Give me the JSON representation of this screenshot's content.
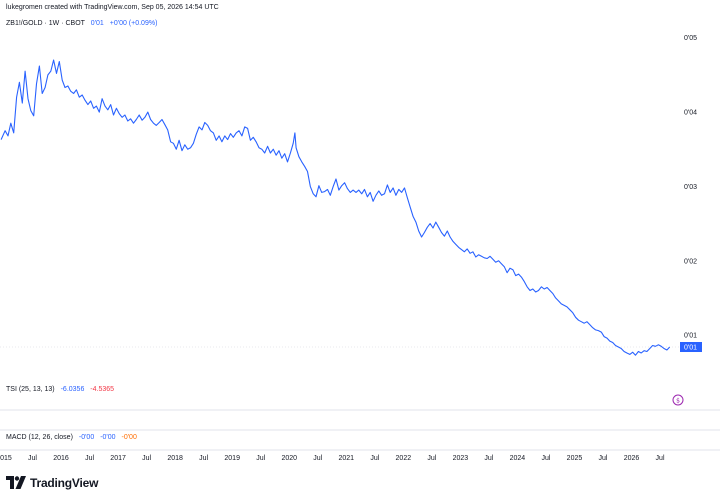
{
  "caption": "lukegromen created with TradingView.com, Sep 05, 2026 14:54 UTC",
  "legend": {
    "symbol": "ZB1!/GOLD · 1W · CBOT",
    "value": "0'01",
    "change": "+0'00 (+0.09%)"
  },
  "indicators": {
    "tsi": {
      "label": "TSI (25, 13, 13)",
      "v1": "-6.0356",
      "v2": "-4.5365"
    },
    "macd": {
      "label": "MACD (12, 26, close)",
      "v1": "-0'00",
      "v2": "-0'00",
      "v3": "-0'00"
    }
  },
  "branding": {
    "logo_text": "TradingView"
  },
  "colors": {
    "line": "#2962ff",
    "label_bg": "#2962ff",
    "tsi_value2": "#f23645",
    "macd_value3": "#ff6d00",
    "event_marker": "#9c27b0"
  },
  "chart_data": {
    "type": "line",
    "title": "ZB1!/GOLD · 1W · CBOT",
    "y_tick_labels": [
      "0'05",
      "0'04",
      "0'03",
      "0'02",
      "0'01"
    ],
    "y_ticks": [
      0.05,
      0.04,
      0.03,
      0.02,
      0.01
    ],
    "ylim": [
      0.0045,
      0.0505
    ],
    "xlim": [
      2015.0,
      2026.85
    ],
    "x_ticks": [
      {
        "x": 2015.0,
        "label": "2015"
      },
      {
        "x": 2015.5,
        "label": "Jul"
      },
      {
        "x": 2016.0,
        "label": "2016"
      },
      {
        "x": 2016.5,
        "label": "Jul"
      },
      {
        "x": 2017.0,
        "label": "2017"
      },
      {
        "x": 2017.5,
        "label": "Jul"
      },
      {
        "x": 2018.0,
        "label": "2018"
      },
      {
        "x": 2018.5,
        "label": "Jul"
      },
      {
        "x": 2019.0,
        "label": "2019"
      },
      {
        "x": 2019.5,
        "label": "Jul"
      },
      {
        "x": 2020.0,
        "label": "2020"
      },
      {
        "x": 2020.5,
        "label": "Jul"
      },
      {
        "x": 2021.0,
        "label": "2021"
      },
      {
        "x": 2021.5,
        "label": "Jul"
      },
      {
        "x": 2022.0,
        "label": "2022"
      },
      {
        "x": 2022.5,
        "label": "Jul"
      },
      {
        "x": 2023.0,
        "label": "2023"
      },
      {
        "x": 2023.5,
        "label": "Jul"
      },
      {
        "x": 2024.0,
        "label": "2024"
      },
      {
        "x": 2024.5,
        "label": "Jul"
      },
      {
        "x": 2025.0,
        "label": "2025"
      },
      {
        "x": 2025.5,
        "label": "Jul"
      },
      {
        "x": 2026.0,
        "label": "2026"
      },
      {
        "x": 2026.5,
        "label": "Jul"
      }
    ],
    "last_value_label": "0'01",
    "last_value": 0.0084,
    "series": [
      {
        "points": [
          [
            2014.95,
            0.0363
          ],
          [
            2015.02,
            0.0375
          ],
          [
            2015.07,
            0.0368
          ],
          [
            2015.12,
            0.0385
          ],
          [
            2015.17,
            0.0372
          ],
          [
            2015.22,
            0.042
          ],
          [
            2015.27,
            0.044
          ],
          [
            2015.32,
            0.0412
          ],
          [
            2015.37,
            0.0455
          ],
          [
            2015.42,
            0.0418
          ],
          [
            2015.47,
            0.0402
          ],
          [
            2015.52,
            0.0395
          ],
          [
            2015.57,
            0.0438
          ],
          [
            2015.62,
            0.0462
          ],
          [
            2015.67,
            0.0425
          ],
          [
            2015.72,
            0.0433
          ],
          [
            2015.77,
            0.045
          ],
          [
            2015.82,
            0.0455
          ],
          [
            2015.87,
            0.047
          ],
          [
            2015.92,
            0.0452
          ],
          [
            2015.97,
            0.0468
          ],
          [
            2016.02,
            0.0443
          ],
          [
            2016.07,
            0.0433
          ],
          [
            2016.12,
            0.0435
          ],
          [
            2016.17,
            0.0428
          ],
          [
            2016.22,
            0.0425
          ],
          [
            2016.27,
            0.043
          ],
          [
            2016.32,
            0.042
          ],
          [
            2016.37,
            0.0423
          ],
          [
            2016.42,
            0.0416
          ],
          [
            2016.47,
            0.041
          ],
          [
            2016.52,
            0.0415
          ],
          [
            2016.57,
            0.0405
          ],
          [
            2016.62,
            0.0408
          ],
          [
            2016.67,
            0.04
          ],
          [
            2016.72,
            0.0418
          ],
          [
            2016.77,
            0.0408
          ],
          [
            2016.82,
            0.0403
          ],
          [
            2016.87,
            0.041
          ],
          [
            2016.92,
            0.0396
          ],
          [
            2016.97,
            0.0405
          ],
          [
            2017.02,
            0.0398
          ],
          [
            2017.07,
            0.0393
          ],
          [
            2017.12,
            0.0396
          ],
          [
            2017.17,
            0.0388
          ],
          [
            2017.22,
            0.0391
          ],
          [
            2017.27,
            0.0385
          ],
          [
            2017.32,
            0.039
          ],
          [
            2017.37,
            0.0396
          ],
          [
            2017.42,
            0.0389
          ],
          [
            2017.47,
            0.0393
          ],
          [
            2017.52,
            0.04
          ],
          [
            2017.57,
            0.039
          ],
          [
            2017.62,
            0.0385
          ],
          [
            2017.67,
            0.0382
          ],
          [
            2017.72,
            0.0386
          ],
          [
            2017.77,
            0.039
          ],
          [
            2017.82,
            0.0383
          ],
          [
            2017.87,
            0.0376
          ],
          [
            2017.92,
            0.036
          ],
          [
            2017.97,
            0.0358
          ],
          [
            2018.02,
            0.035
          ],
          [
            2018.07,
            0.0362
          ],
          [
            2018.12,
            0.0348
          ],
          [
            2018.17,
            0.0356
          ],
          [
            2018.22,
            0.035
          ],
          [
            2018.27,
            0.0352
          ],
          [
            2018.32,
            0.0358
          ],
          [
            2018.37,
            0.037
          ],
          [
            2018.42,
            0.038
          ],
          [
            2018.47,
            0.0376
          ],
          [
            2018.52,
            0.0386
          ],
          [
            2018.57,
            0.0382
          ],
          [
            2018.62,
            0.0375
          ],
          [
            2018.67,
            0.0372
          ],
          [
            2018.72,
            0.0362
          ],
          [
            2018.77,
            0.0368
          ],
          [
            2018.82,
            0.036
          ],
          [
            2018.87,
            0.0368
          ],
          [
            2018.92,
            0.0363
          ],
          [
            2018.97,
            0.0371
          ],
          [
            2019.02,
            0.0366
          ],
          [
            2019.07,
            0.0372
          ],
          [
            2019.12,
            0.0375
          ],
          [
            2019.17,
            0.0368
          ],
          [
            2019.22,
            0.038
          ],
          [
            2019.27,
            0.0378
          ],
          [
            2019.32,
            0.0362
          ],
          [
            2019.37,
            0.0366
          ],
          [
            2019.42,
            0.036
          ],
          [
            2019.47,
            0.0352
          ],
          [
            2019.52,
            0.035
          ],
          [
            2019.57,
            0.0345
          ],
          [
            2019.62,
            0.0354
          ],
          [
            2019.67,
            0.0345
          ],
          [
            2019.72,
            0.035
          ],
          [
            2019.77,
            0.0342
          ],
          [
            2019.82,
            0.0348
          ],
          [
            2019.87,
            0.0338
          ],
          [
            2019.92,
            0.0344
          ],
          [
            2019.97,
            0.0333
          ],
          [
            2020.02,
            0.0345
          ],
          [
            2020.07,
            0.0358
          ],
          [
            2020.1,
            0.0372
          ],
          [
            2020.12,
            0.0352
          ],
          [
            2020.17,
            0.034
          ],
          [
            2020.22,
            0.0333
          ],
          [
            2020.27,
            0.0327
          ],
          [
            2020.32,
            0.032
          ],
          [
            2020.37,
            0.03
          ],
          [
            2020.42,
            0.029
          ],
          [
            2020.47,
            0.0286
          ],
          [
            2020.52,
            0.0301
          ],
          [
            2020.57,
            0.0292
          ],
          [
            2020.62,
            0.0293
          ],
          [
            2020.67,
            0.0296
          ],
          [
            2020.72,
            0.0288
          ],
          [
            2020.77,
            0.03
          ],
          [
            2020.82,
            0.031
          ],
          [
            2020.87,
            0.0295
          ],
          [
            2020.92,
            0.0301
          ],
          [
            2020.97,
            0.0305
          ],
          [
            2021.02,
            0.0297
          ],
          [
            2021.07,
            0.0292
          ],
          [
            2021.12,
            0.0295
          ],
          [
            2021.17,
            0.0292
          ],
          [
            2021.22,
            0.0295
          ],
          [
            2021.27,
            0.029
          ],
          [
            2021.32,
            0.0296
          ],
          [
            2021.37,
            0.0286
          ],
          [
            2021.42,
            0.0292
          ],
          [
            2021.47,
            0.028
          ],
          [
            2021.52,
            0.0288
          ],
          [
            2021.57,
            0.0294
          ],
          [
            2021.62,
            0.0288
          ],
          [
            2021.67,
            0.029
          ],
          [
            2021.72,
            0.0302
          ],
          [
            2021.77,
            0.0292
          ],
          [
            2021.82,
            0.0298
          ],
          [
            2021.87,
            0.0288
          ],
          [
            2021.92,
            0.0296
          ],
          [
            2021.97,
            0.0292
          ],
          [
            2022.02,
            0.0298
          ],
          [
            2022.07,
            0.0285
          ],
          [
            2022.12,
            0.0272
          ],
          [
            2022.17,
            0.026
          ],
          [
            2022.22,
            0.0252
          ],
          [
            2022.27,
            0.024
          ],
          [
            2022.32,
            0.0232
          ],
          [
            2022.37,
            0.0238
          ],
          [
            2022.42,
            0.0245
          ],
          [
            2022.47,
            0.025
          ],
          [
            2022.52,
            0.0244
          ],
          [
            2022.57,
            0.0252
          ],
          [
            2022.62,
            0.0245
          ],
          [
            2022.67,
            0.0238
          ],
          [
            2022.72,
            0.0233
          ],
          [
            2022.77,
            0.024
          ],
          [
            2022.82,
            0.0232
          ],
          [
            2022.87,
            0.0226
          ],
          [
            2022.92,
            0.0222
          ],
          [
            2022.97,
            0.0218
          ],
          [
            2023.02,
            0.0215
          ],
          [
            2023.07,
            0.0212
          ],
          [
            2023.12,
            0.0216
          ],
          [
            2023.17,
            0.021
          ],
          [
            2023.22,
            0.0212
          ],
          [
            2023.27,
            0.0205
          ],
          [
            2023.32,
            0.0208
          ],
          [
            2023.37,
            0.0206
          ],
          [
            2023.42,
            0.0204
          ],
          [
            2023.47,
            0.0203
          ],
          [
            2023.52,
            0.0206
          ],
          [
            2023.57,
            0.0202
          ],
          [
            2023.62,
            0.0198
          ],
          [
            2023.67,
            0.02
          ],
          [
            2023.72,
            0.0196
          ],
          [
            2023.77,
            0.0192
          ],
          [
            2023.82,
            0.0184
          ],
          [
            2023.87,
            0.019
          ],
          [
            2023.92,
            0.0188
          ],
          [
            2023.97,
            0.018
          ],
          [
            2024.02,
            0.0182
          ],
          [
            2024.07,
            0.0178
          ],
          [
            2024.12,
            0.0172
          ],
          [
            2024.17,
            0.0165
          ],
          [
            2024.22,
            0.016
          ],
          [
            2024.27,
            0.0162
          ],
          [
            2024.32,
            0.0158
          ],
          [
            2024.37,
            0.016
          ],
          [
            2024.42,
            0.0165
          ],
          [
            2024.47,
            0.0162
          ],
          [
            2024.52,
            0.0164
          ],
          [
            2024.57,
            0.016
          ],
          [
            2024.62,
            0.0156
          ],
          [
            2024.67,
            0.015
          ],
          [
            2024.72,
            0.0146
          ],
          [
            2024.77,
            0.0142
          ],
          [
            2024.82,
            0.014
          ],
          [
            2024.87,
            0.0138
          ],
          [
            2024.92,
            0.0134
          ],
          [
            2024.97,
            0.013
          ],
          [
            2025.02,
            0.0124
          ],
          [
            2025.07,
            0.012
          ],
          [
            2025.12,
            0.0118
          ],
          [
            2025.17,
            0.0116
          ],
          [
            2025.22,
            0.0118
          ],
          [
            2025.27,
            0.0114
          ],
          [
            2025.32,
            0.011
          ],
          [
            2025.37,
            0.0107
          ],
          [
            2025.42,
            0.0106
          ],
          [
            2025.47,
            0.0104
          ],
          [
            2025.52,
            0.0098
          ],
          [
            2025.57,
            0.0096
          ],
          [
            2025.62,
            0.0092
          ],
          [
            2025.67,
            0.009
          ],
          [
            2025.72,
            0.0086
          ],
          [
            2025.77,
            0.0084
          ],
          [
            2025.82,
            0.0082
          ],
          [
            2025.87,
            0.0078
          ],
          [
            2025.92,
            0.0076
          ],
          [
            2025.97,
            0.0074
          ],
          [
            2026.02,
            0.0077
          ],
          [
            2026.07,
            0.0073
          ],
          [
            2026.12,
            0.0078
          ],
          [
            2026.17,
            0.0076
          ],
          [
            2026.22,
            0.0079
          ],
          [
            2026.27,
            0.0078
          ],
          [
            2026.32,
            0.0082
          ],
          [
            2026.37,
            0.0086
          ],
          [
            2026.42,
            0.0085
          ],
          [
            2026.47,
            0.0087
          ],
          [
            2026.52,
            0.0085
          ],
          [
            2026.57,
            0.0082
          ],
          [
            2026.62,
            0.008
          ],
          [
            2026.67,
            0.0084
          ]
        ]
      }
    ]
  }
}
